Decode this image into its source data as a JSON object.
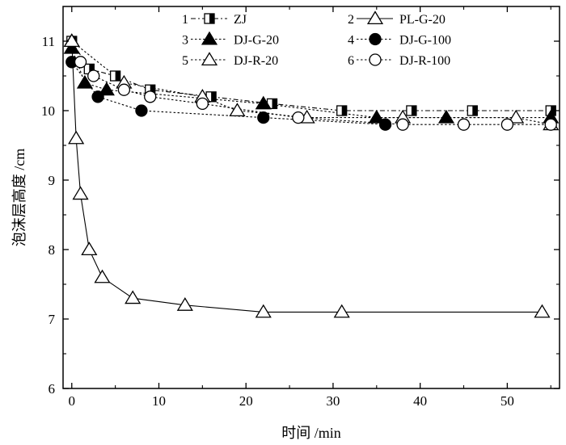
{
  "chart_data": {
    "type": "line",
    "xlabel": "时间 /min",
    "ylabel": "泡沫层高度 /cm",
    "xlim": [
      -1,
      56
    ],
    "ylim": [
      6,
      11.5
    ],
    "xticks": [
      "0",
      "10",
      "20",
      "30",
      "40",
      "50"
    ],
    "yticks": [
      "6",
      "7",
      "8",
      "9",
      "10",
      "11"
    ],
    "legend_position": "top",
    "series": [
      {
        "name": "ZJ",
        "legend_index": "1",
        "marker": "half-square",
        "line": "dash-dot",
        "x": [
          0,
          2,
          5,
          9,
          16,
          23,
          31,
          39,
          46,
          55
        ],
        "y": [
          11.0,
          10.6,
          10.5,
          10.3,
          10.2,
          10.1,
          10.0,
          10.0,
          10.0,
          10.0
        ]
      },
      {
        "name": "PL-G-20",
        "legend_index": "2",
        "marker": "open-triangle",
        "line": "solid",
        "x": [
          0,
          0.5,
          1,
          2,
          3.5,
          7,
          13,
          22,
          31,
          54
        ],
        "y": [
          11.0,
          9.6,
          8.8,
          8.0,
          7.6,
          7.3,
          7.2,
          7.1,
          7.1,
          7.1
        ]
      },
      {
        "name": "DJ-G-20",
        "legend_index": "3",
        "marker": "filled-triangle",
        "line": "dotted",
        "x": [
          0,
          1.5,
          4,
          22,
          35,
          43,
          55
        ],
        "y": [
          10.9,
          10.4,
          10.3,
          10.1,
          9.9,
          9.9,
          9.9
        ]
      },
      {
        "name": "DJ-G-100",
        "legend_index": "4",
        "marker": "filled-circle",
        "line": "dotted",
        "x": [
          0,
          3,
          8,
          22,
          36
        ],
        "y": [
          10.7,
          10.2,
          10.0,
          9.9,
          9.8
        ]
      },
      {
        "name": "DJ-R-20",
        "legend_index": "5",
        "marker": "open-triangle",
        "line": "dotted",
        "x": [
          0,
          6,
          15,
          19,
          27,
          38,
          51,
          55
        ],
        "y": [
          11.0,
          10.4,
          10.2,
          10.0,
          9.9,
          9.9,
          9.9,
          9.8
        ]
      },
      {
        "name": "DJ-R-100",
        "legend_index": "6",
        "marker": "open-circle",
        "line": "dotted",
        "x": [
          1,
          2.5,
          6,
          9,
          15,
          26,
          38,
          45,
          50,
          55
        ],
        "y": [
          10.7,
          10.5,
          10.3,
          10.2,
          10.1,
          9.9,
          9.8,
          9.8,
          9.8,
          9.8
        ]
      }
    ]
  }
}
